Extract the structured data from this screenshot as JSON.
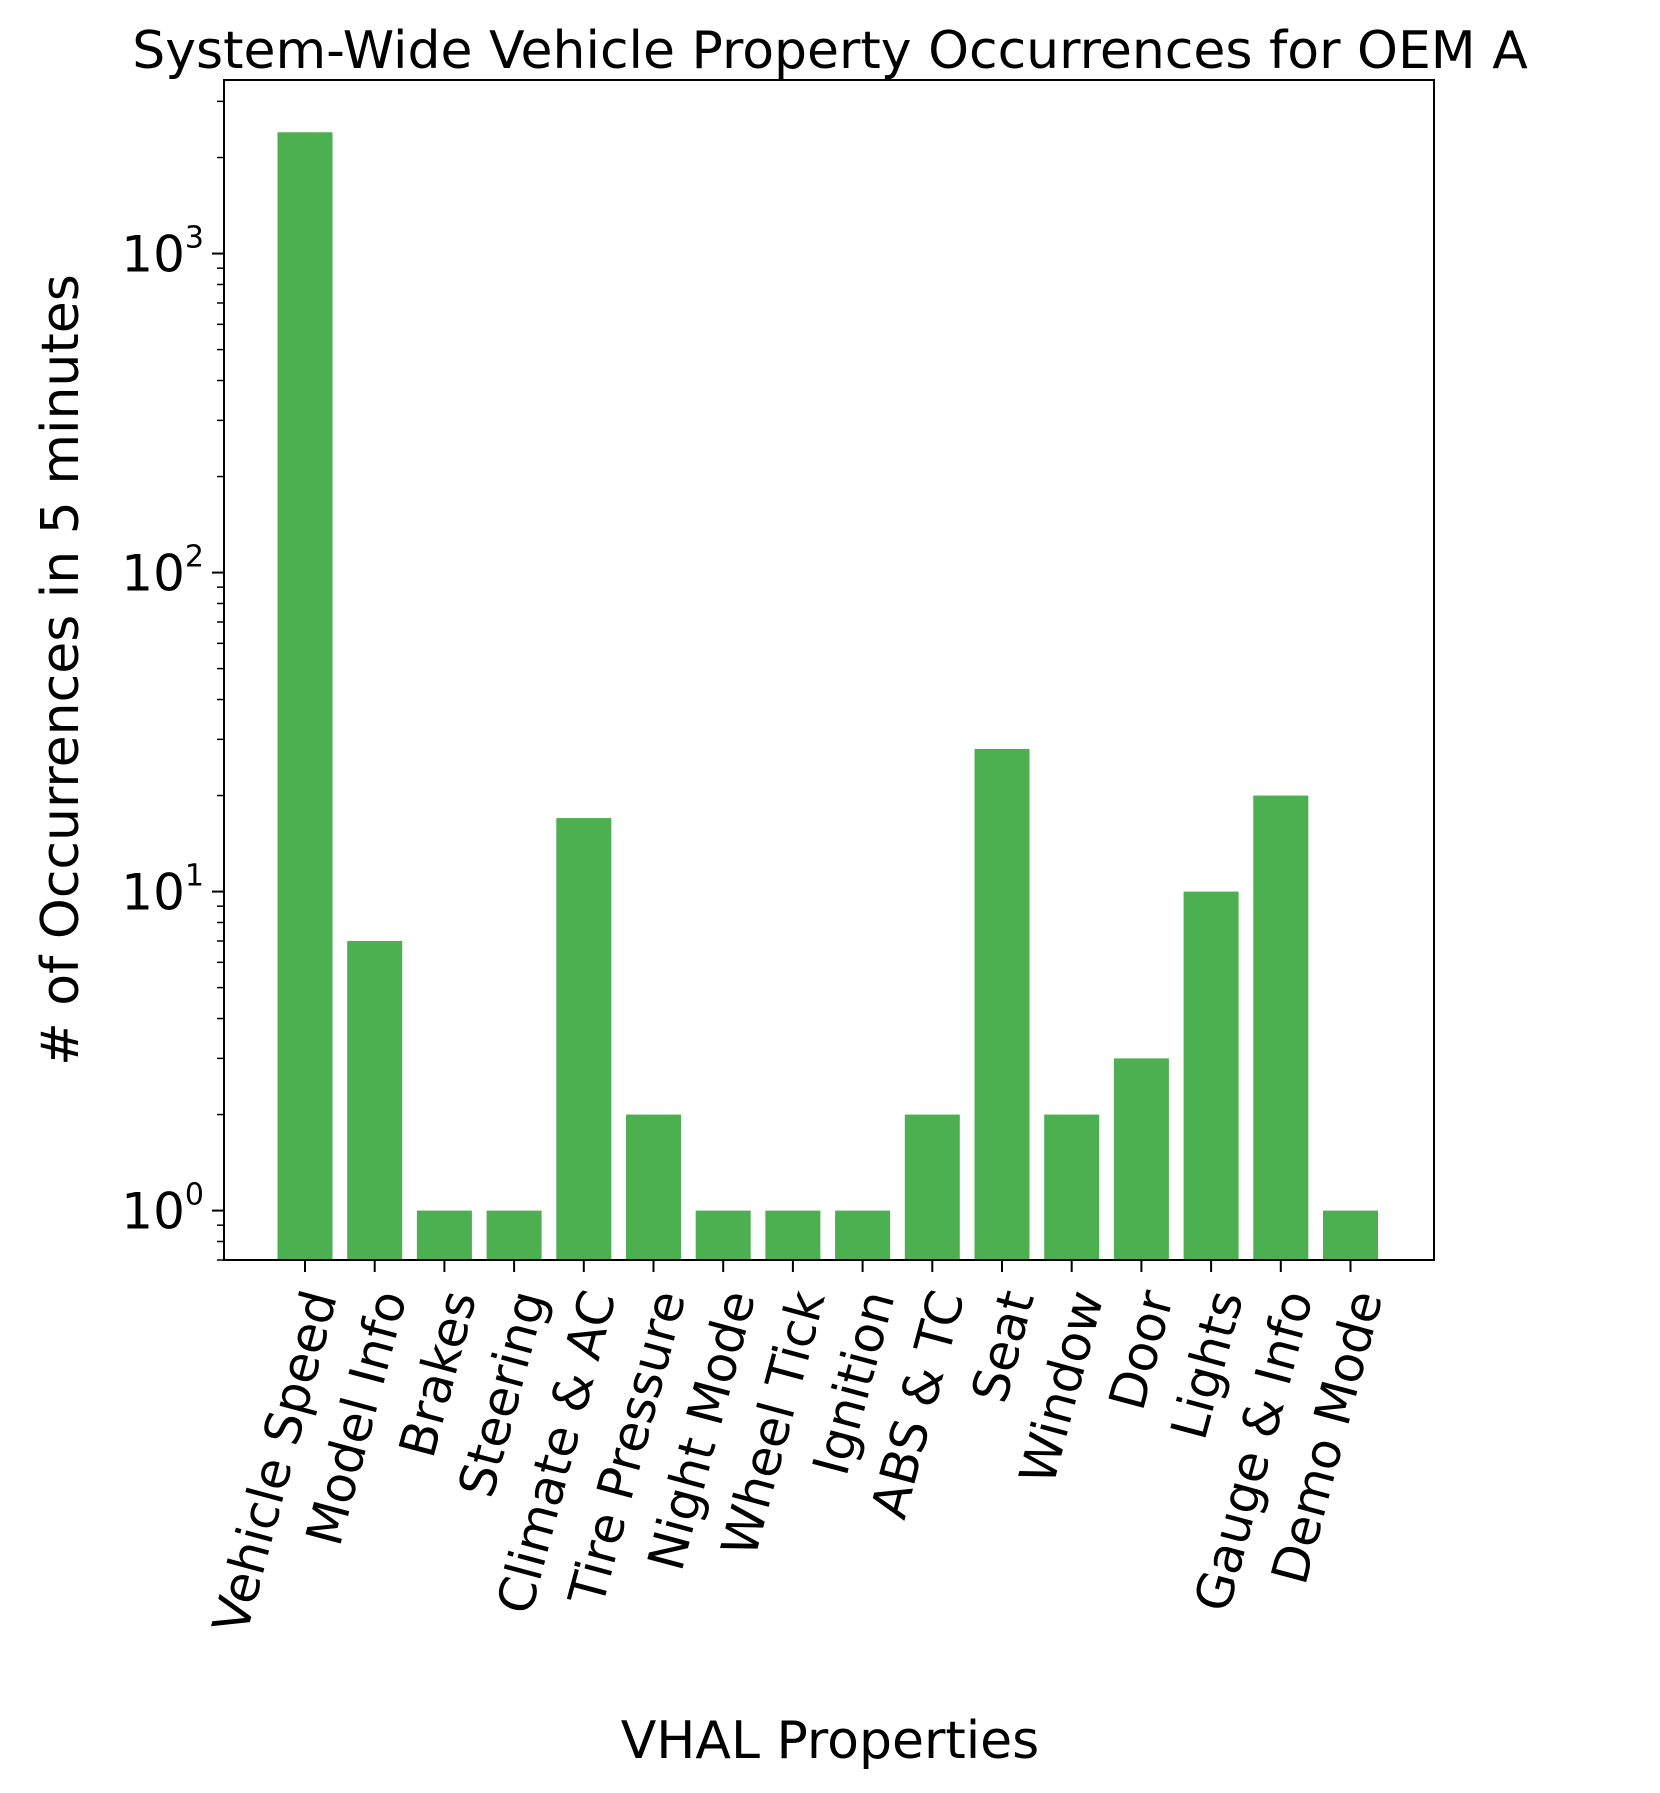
{
  "chart_data": {
    "type": "bar",
    "title": "System-Wide Vehicle Property Occurrences for OEM A",
    "xlabel": "VHAL Properties",
    "ylabel": "# of Occurrences in 5 minutes",
    "yscale": "log",
    "ylim": [
      0.7,
      3500
    ],
    "yticks": [
      {
        "value": 1,
        "base": "10",
        "exp": "0"
      },
      {
        "value": 10,
        "base": "10",
        "exp": "1"
      },
      {
        "value": 100,
        "base": "10",
        "exp": "2"
      },
      {
        "value": 1000,
        "base": "10",
        "exp": "3"
      }
    ],
    "categories": [
      "Vehicle Speed",
      "Model Info",
      "Brakes",
      "Steering",
      "Climate & AC",
      "Tire Pressure",
      "Night Mode",
      "Wheel Tick",
      "Ignition",
      "ABS & TC",
      "Seat",
      "Window",
      "Door",
      "Lights",
      "Gauge & Info",
      "Demo Mode"
    ],
    "values": [
      2400,
      7,
      1,
      1,
      17,
      2,
      1,
      1,
      1,
      2,
      28,
      2,
      3,
      10,
      20,
      1
    ],
    "bar_color": "#4caf50",
    "grid": false,
    "legend": "none"
  }
}
